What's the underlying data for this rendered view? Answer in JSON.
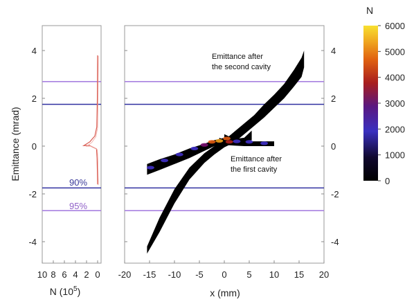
{
  "chart_data": [
    {
      "type": "line",
      "panel": "left",
      "xlabel_base": "N (10",
      "xlabel_exp": "5",
      "xlabel_end": ")",
      "ylabel": "Emittance (mrad)",
      "x_ticks": [
        "10",
        "8",
        "6",
        "4",
        "2",
        "0"
      ],
      "x_tick_values": [
        10,
        8,
        6,
        4,
        2,
        0
      ],
      "y_ticks": [
        "4",
        "2",
        "0",
        "-2",
        "-4"
      ],
      "y_tick_values": [
        4,
        2,
        0,
        -2,
        -4
      ],
      "xlim": [
        10,
        0
      ],
      "ylim": [
        -5.0,
        5.0
      ],
      "series": [
        {
          "x": [
            0,
            0.05,
            0.1,
            0.2,
            0.8,
            1.5,
            2.5,
            1.4,
            0.9,
            0.5,
            0.15,
            0.05,
            0
          ],
          "y": [
            -1.6,
            -1.0,
            -0.5,
            -0.12,
            -0.05,
            0.03,
            0.02,
            0.18,
            0.32,
            0.42,
            0.8,
            2.0,
            3.8
          ]
        }
      ],
      "percent_labels": [
        {
          "text": "90%",
          "y": -1.6,
          "color": "#3a3a9a"
        },
        {
          "text": "95%",
          "y": -2.55,
          "color": "#9060c8"
        }
      ]
    },
    {
      "type": "scatter",
      "panel": "right",
      "xlabel": "x (mm)",
      "x_ticks": [
        "-20",
        "-15",
        "-10",
        "-5",
        "0",
        "5",
        "10",
        "15",
        "20"
      ],
      "x_tick_values": [
        -20,
        -15,
        -10,
        -5,
        0,
        5,
        10,
        15,
        20
      ],
      "y_ticks": [
        "4",
        "2",
        "0",
        "-2",
        "-4"
      ],
      "y_tick_values": [
        4,
        2,
        0,
        -2,
        -4
      ],
      "xlim": [
        -20,
        20
      ],
      "ylim": [
        -5.0,
        5.0
      ],
      "annotations": [
        {
          "lines": [
            "Emittance after",
            "the second cavity"
          ],
          "x": -1.5,
          "y": 3.75
        },
        {
          "lines": [
            "Emittance after",
            "the first cavity"
          ],
          "x": 0.5,
          "y": -0.5
        }
      ],
      "distributions": [
        {
          "name_hidden": true,
          "x": [
            -15.5,
            -13,
            -10,
            -7,
            -4,
            -2,
            0,
            2,
            4,
            6,
            8,
            10,
            12,
            14,
            15.5,
            16
          ],
          "y_upper": [
            -4.2,
            -3.0,
            -1.8,
            -0.9,
            -0.3,
            0.0,
            0.25,
            0.6,
            0.95,
            1.3,
            1.75,
            2.15,
            2.6,
            3.2,
            3.7,
            4.0
          ],
          "y_lower": [
            -4.5,
            -3.6,
            -2.4,
            -1.4,
            -0.7,
            -0.35,
            -0.05,
            0.15,
            0.5,
            0.85,
            1.2,
            1.6,
            2.0,
            2.5,
            2.9,
            3.3
          ]
        },
        {
          "name_hidden": true,
          "x": [
            -15.5,
            -13,
            -10,
            -7,
            -4,
            -2,
            -1,
            0
          ],
          "y_upper": [
            -0.75,
            -0.55,
            -0.35,
            -0.1,
            0.1,
            0.25,
            0.3,
            0.35
          ],
          "y_lower": [
            -1.2,
            -1.0,
            -0.75,
            -0.5,
            -0.2,
            0.0,
            0.05,
            0.15
          ]
        },
        {
          "name_hidden": true,
          "x": [
            -1,
            0,
            2,
            4,
            6,
            8,
            10
          ],
          "y_upper": [
            0.35,
            0.25,
            0.22,
            0.2,
            0.2,
            0.2,
            0.2
          ],
          "y_lower": [
            0.15,
            0.05,
            0.02,
            0.0,
            0.0,
            0.0,
            0.0
          ]
        },
        {
          "name_hidden": true,
          "x": [
            0,
            2,
            4,
            5.5
          ],
          "y_upper": [
            0.5,
            0.3,
            0.35,
            0.65
          ],
          "y_lower": [
            0.3,
            0.12,
            0.12,
            0.25
          ]
        }
      ],
      "hot_core": [
        {
          "x": -2.5,
          "y": 0.18,
          "n": 4500
        },
        {
          "x": -1.0,
          "y": 0.22,
          "n": 5200
        },
        {
          "x": 0.5,
          "y": 0.32,
          "n": 4200
        },
        {
          "x": 1.0,
          "y": 0.18,
          "n": 3800
        },
        {
          "x": -4.0,
          "y": 0.05,
          "n": 2600
        },
        {
          "x": -6.0,
          "y": -0.1,
          "n": 1800
        },
        {
          "x": -9.0,
          "y": -0.35,
          "n": 1800
        },
        {
          "x": -12.0,
          "y": -0.6,
          "n": 2000
        },
        {
          "x": -14.8,
          "y": -0.9,
          "n": 1500
        },
        {
          "x": 2.5,
          "y": 0.2,
          "n": 2100
        },
        {
          "x": 5.0,
          "y": 0.18,
          "n": 1700
        },
        {
          "x": 8.0,
          "y": 0.12,
          "n": 1900
        }
      ]
    }
  ],
  "horizontal_lines": [
    {
      "y": 2.7,
      "color": "#a880e0"
    },
    {
      "y": 1.75,
      "color": "#3030a0"
    },
    {
      "y": -1.75,
      "color": "#3030a0"
    },
    {
      "y": -2.7,
      "color": "#a880e0"
    }
  ],
  "colorbar": {
    "title": "N",
    "ticks": [
      "6000",
      "5000",
      "4000",
      "3000",
      "2000",
      "1000",
      "0"
    ],
    "tick_values": [
      6000,
      5000,
      4000,
      3000,
      2000,
      1000,
      0
    ],
    "range": [
      0,
      6000
    ],
    "colors": [
      "#000000",
      "#1a0a50",
      "#4030c8",
      "#7a1070",
      "#b0201a",
      "#e05a10",
      "#f0a018",
      "#f8e030"
    ]
  }
}
